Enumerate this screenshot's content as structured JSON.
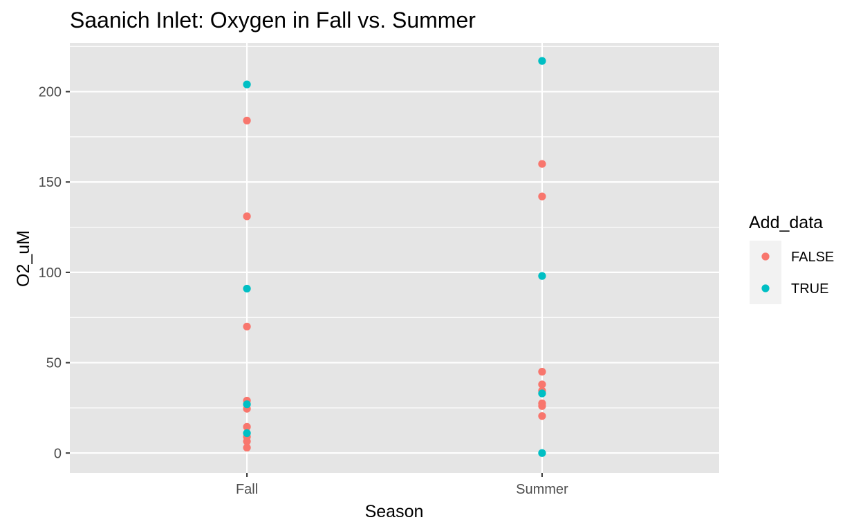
{
  "chart_data": {
    "type": "scatter",
    "title": "Saanich Inlet: Oxygen in Fall vs. Summer",
    "xlabel": "Season",
    "ylabel": "O2_uM",
    "categories": [
      "Fall",
      "Summer"
    ],
    "ylim": [
      -11,
      227
    ],
    "y_ticks": [
      0,
      50,
      100,
      150,
      200
    ],
    "y_tick_labels": [
      "0",
      "50",
      "100",
      "150",
      "200"
    ],
    "grid": true,
    "legend": {
      "title": "Add_data",
      "position": "right",
      "entries": [
        "FALSE",
        "TRUE"
      ]
    },
    "series": [
      {
        "name": "FALSE",
        "color": "#f8766d",
        "points": [
          {
            "x": "Fall",
            "y": 184
          },
          {
            "x": "Fall",
            "y": 131
          },
          {
            "x": "Fall",
            "y": 70
          },
          {
            "x": "Fall",
            "y": 29
          },
          {
            "x": "Fall",
            "y": 24.5
          },
          {
            "x": "Fall",
            "y": 14.5
          },
          {
            "x": "Fall",
            "y": 9
          },
          {
            "x": "Fall",
            "y": 6.5
          },
          {
            "x": "Fall",
            "y": 3
          },
          {
            "x": "Summer",
            "y": 160
          },
          {
            "x": "Summer",
            "y": 142
          },
          {
            "x": "Summer",
            "y": 45
          },
          {
            "x": "Summer",
            "y": 38
          },
          {
            "x": "Summer",
            "y": 34.5
          },
          {
            "x": "Summer",
            "y": 27.5
          },
          {
            "x": "Summer",
            "y": 26
          },
          {
            "x": "Summer",
            "y": 20.5
          }
        ]
      },
      {
        "name": "TRUE",
        "color": "#00bfc4",
        "points": [
          {
            "x": "Fall",
            "y": 204
          },
          {
            "x": "Fall",
            "y": 91
          },
          {
            "x": "Fall",
            "y": 27
          },
          {
            "x": "Fall",
            "y": 11
          },
          {
            "x": "Summer",
            "y": 217
          },
          {
            "x": "Summer",
            "y": 98
          },
          {
            "x": "Summer",
            "y": 33
          },
          {
            "x": "Summer",
            "y": 0
          }
        ]
      }
    ]
  },
  "colors": {
    "panel_background": "#e5e5e5",
    "grid_line": "#ffffff",
    "legend_key_background": "#f2f2f2",
    "tick_color": "#333333"
  }
}
